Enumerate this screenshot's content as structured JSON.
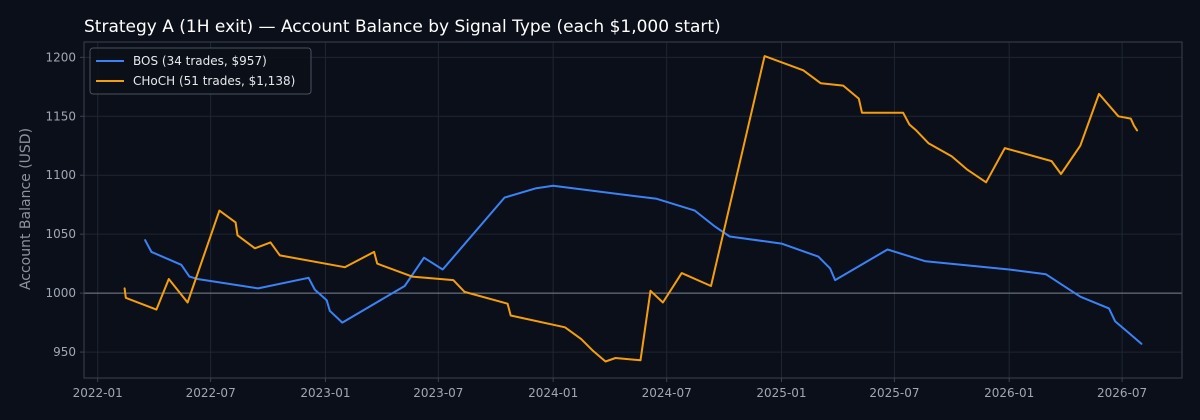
{
  "chart_data": {
    "type": "line",
    "title": "Strategy A (1H exit) — Account Balance by Signal Type (each $1,000 start)",
    "xlabel": "",
    "ylabel": "Account Balance (USD)",
    "x_axis_type": "date",
    "xlim": [
      "2021-12-10",
      "2026-10-05"
    ],
    "ylim": [
      928,
      1213
    ],
    "x_ticks": [
      {
        "date": "2022-01-01",
        "label": "2022-01"
      },
      {
        "date": "2022-07-01",
        "label": "2022-07"
      },
      {
        "date": "2023-01-01",
        "label": "2023-01"
      },
      {
        "date": "2023-07-01",
        "label": "2023-07"
      },
      {
        "date": "2024-01-01",
        "label": "2024-01"
      },
      {
        "date": "2024-07-01",
        "label": "2024-07"
      },
      {
        "date": "2025-01-01",
        "label": "2025-01"
      },
      {
        "date": "2025-07-01",
        "label": "2025-07"
      },
      {
        "date": "2026-01-01",
        "label": "2026-01"
      },
      {
        "date": "2026-07-01",
        "label": "2026-07"
      }
    ],
    "y_ticks": [
      950,
      1000,
      1050,
      1100,
      1150,
      1200
    ],
    "grid": true,
    "reference_line": 1000,
    "legend_position": "top-left",
    "series": [
      {
        "name": "BOS (34 trades, $957)",
        "color": "#3b82f6",
        "points": [
          [
            "2022-03-18",
            1045
          ],
          [
            "2022-03-28",
            1035
          ],
          [
            "2022-05-15",
            1024
          ],
          [
            "2022-05-28",
            1014
          ],
          [
            "2022-06-10",
            1012
          ],
          [
            "2022-09-15",
            1004
          ],
          [
            "2022-12-05",
            1013
          ],
          [
            "2022-12-15",
            1003
          ],
          [
            "2023-01-03",
            994
          ],
          [
            "2023-01-08",
            985
          ],
          [
            "2023-01-28",
            975
          ],
          [
            "2023-05-08",
            1006
          ],
          [
            "2023-06-08",
            1030
          ],
          [
            "2023-07-08",
            1020
          ],
          [
            "2023-10-15",
            1081
          ],
          [
            "2023-12-05",
            1089
          ],
          [
            "2024-01-01",
            1091
          ],
          [
            "2024-06-15",
            1080
          ],
          [
            "2024-08-15",
            1070
          ],
          [
            "2024-09-15",
            1057
          ],
          [
            "2024-10-10",
            1048
          ],
          [
            "2025-01-01",
            1042
          ],
          [
            "2025-03-01",
            1031
          ],
          [
            "2025-03-20",
            1021
          ],
          [
            "2025-03-28",
            1011
          ],
          [
            "2025-06-20",
            1037
          ],
          [
            "2025-08-20",
            1027
          ],
          [
            "2026-01-01",
            1020
          ],
          [
            "2026-03-01",
            1016
          ],
          [
            "2026-04-25",
            997
          ],
          [
            "2026-06-10",
            987
          ],
          [
            "2026-06-20",
            976
          ],
          [
            "2026-07-10",
            967
          ],
          [
            "2026-08-01",
            957
          ]
        ]
      },
      {
        "name": "CHoCH (51 trades, $1,138)",
        "color": "#f59e0b",
        "points": [
          [
            "2022-02-13",
            1004
          ],
          [
            "2022-02-15",
            996
          ],
          [
            "2022-04-05",
            986
          ],
          [
            "2022-04-25",
            1012
          ],
          [
            "2022-05-25",
            992
          ],
          [
            "2022-07-15",
            1070
          ],
          [
            "2022-08-10",
            1060
          ],
          [
            "2022-08-13",
            1049
          ],
          [
            "2022-09-10",
            1038
          ],
          [
            "2022-10-05",
            1043
          ],
          [
            "2022-10-20",
            1032
          ],
          [
            "2023-02-01",
            1022
          ],
          [
            "2023-03-20",
            1035
          ],
          [
            "2023-03-25",
            1025
          ],
          [
            "2023-05-20",
            1014
          ],
          [
            "2023-07-25",
            1011
          ],
          [
            "2023-08-12",
            1001
          ],
          [
            "2023-10-20",
            991
          ],
          [
            "2023-10-25",
            981
          ],
          [
            "2024-01-20",
            971
          ],
          [
            "2024-02-15",
            961
          ],
          [
            "2024-03-05",
            951
          ],
          [
            "2024-03-25",
            942
          ],
          [
            "2024-04-10",
            945
          ],
          [
            "2024-05-20",
            943
          ],
          [
            "2024-06-05",
            1002
          ],
          [
            "2024-06-25",
            992
          ],
          [
            "2024-07-25",
            1017
          ],
          [
            "2024-09-10",
            1006
          ],
          [
            "2024-12-05",
            1201
          ],
          [
            "2025-02-05",
            1189
          ],
          [
            "2025-03-05",
            1178
          ],
          [
            "2025-04-10",
            1176
          ],
          [
            "2025-05-05",
            1165
          ],
          [
            "2025-05-10",
            1153
          ],
          [
            "2025-07-15",
            1153
          ],
          [
            "2025-07-25",
            1143
          ],
          [
            "2025-08-05",
            1138
          ],
          [
            "2025-08-25",
            1127
          ],
          [
            "2025-10-01",
            1116
          ],
          [
            "2025-10-25",
            1105
          ],
          [
            "2025-11-25",
            1094
          ],
          [
            "2025-12-25",
            1123
          ],
          [
            "2026-03-10",
            1112
          ],
          [
            "2026-03-25",
            1101
          ],
          [
            "2026-04-25",
            1125
          ],
          [
            "2026-05-25",
            1169
          ],
          [
            "2026-06-25",
            1150
          ],
          [
            "2026-07-15",
            1148
          ],
          [
            "2026-07-20",
            1142
          ],
          [
            "2026-07-25",
            1138
          ]
        ]
      }
    ]
  },
  "colors": {
    "background": "#0b0f19",
    "plot_background": "#0b0f19",
    "grid": "#1f2633",
    "axis": "#3a4150",
    "text": "#ffffff",
    "tick_text": "#a0a7b4",
    "reference_line": "#7a8190"
  }
}
